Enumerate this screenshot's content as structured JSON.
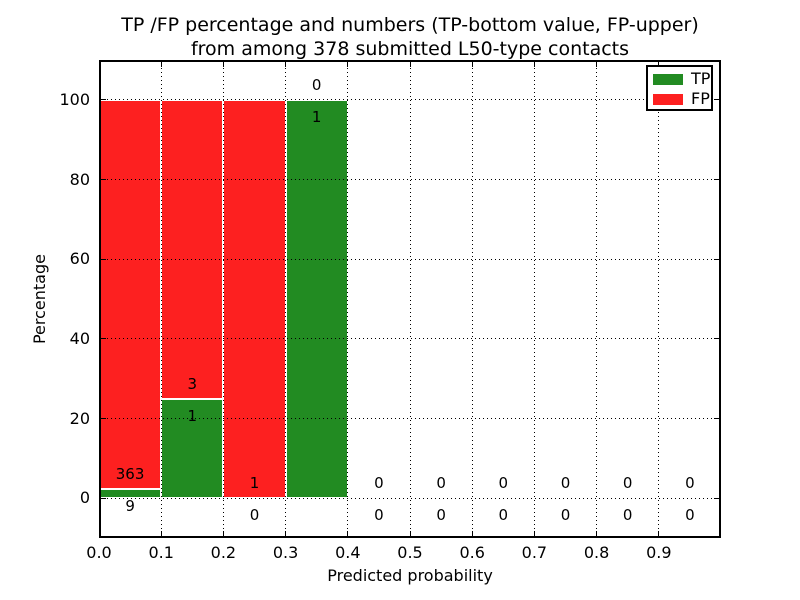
{
  "title": {
    "line1": "TP /FP percentage and numbers (TP-bottom value, FP-upper)",
    "line2": "from among 378 submitted L50-type contacts"
  },
  "x_axis": {
    "label": "Predicted probability",
    "tick_labels": [
      "0.0",
      "0.1",
      "0.2",
      "0.3",
      "0.4",
      "0.5",
      "0.6",
      "0.7",
      "0.8",
      "0.9"
    ],
    "tick_values": [
      0.0,
      0.1,
      0.2,
      0.3,
      0.4,
      0.5,
      0.6,
      0.7,
      0.8,
      0.9
    ]
  },
  "y_axis": {
    "label": "Percentage",
    "tick_labels": [
      "0",
      "20",
      "40",
      "60",
      "80",
      "100"
    ],
    "tick_values": [
      0,
      20,
      40,
      60,
      80,
      100
    ]
  },
  "legend": {
    "entries": [
      {
        "label": "TP",
        "color": "#228b22"
      },
      {
        "label": "FP",
        "color": "#fd2020"
      }
    ]
  },
  "colors": {
    "tp": "#228b22",
    "fp": "#fd2020",
    "bar_edge": "#ffffff",
    "grid": "#000000",
    "text": "#000000",
    "background": "#ffffff"
  },
  "chart_data": {
    "type": "bar",
    "stacked": true,
    "title": "TP /FP percentage and numbers (TP-bottom value, FP-upper) from among 378 submitted L50-type contacts",
    "xlabel": "Predicted probability",
    "ylabel": "Percentage",
    "xlim": [
      0.0,
      1.0
    ],
    "ylim": [
      -10,
      110
    ],
    "grid": true,
    "legend_position": "upper right",
    "bin_width": 0.1,
    "total_contacts": 378,
    "series": [
      {
        "name": "TP",
        "color": "#228b22",
        "position": "bottom"
      },
      {
        "name": "FP",
        "color": "#fd2020",
        "position": "upper"
      }
    ],
    "bins": [
      {
        "x_range": [
          0.0,
          0.1
        ],
        "center": 0.05,
        "tp_count": 9,
        "fp_count": 363,
        "tp_pct": 2.42,
        "fp_pct": 97.58
      },
      {
        "x_range": [
          0.1,
          0.2
        ],
        "center": 0.15,
        "tp_count": 1,
        "fp_count": 3,
        "tp_pct": 25.0,
        "fp_pct": 75.0
      },
      {
        "x_range": [
          0.2,
          0.3
        ],
        "center": 0.25,
        "tp_count": 0,
        "fp_count": 1,
        "tp_pct": 0.0,
        "fp_pct": 100.0
      },
      {
        "x_range": [
          0.3,
          0.4
        ],
        "center": 0.35,
        "tp_count": 1,
        "fp_count": 0,
        "tp_pct": 100.0,
        "fp_pct": 0.0
      },
      {
        "x_range": [
          0.4,
          0.5
        ],
        "center": 0.45,
        "tp_count": 0,
        "fp_count": 0,
        "tp_pct": 0.0,
        "fp_pct": 0.0
      },
      {
        "x_range": [
          0.5,
          0.6
        ],
        "center": 0.55,
        "tp_count": 0,
        "fp_count": 0,
        "tp_pct": 0.0,
        "fp_pct": 0.0
      },
      {
        "x_range": [
          0.6,
          0.7
        ],
        "center": 0.65,
        "tp_count": 0,
        "fp_count": 0,
        "tp_pct": 0.0,
        "fp_pct": 0.0
      },
      {
        "x_range": [
          0.7,
          0.8
        ],
        "center": 0.75,
        "tp_count": 0,
        "fp_count": 0,
        "tp_pct": 0.0,
        "fp_pct": 0.0
      },
      {
        "x_range": [
          0.8,
          0.9
        ],
        "center": 0.85,
        "tp_count": 0,
        "fp_count": 0,
        "tp_pct": 0.0,
        "fp_pct": 0.0
      },
      {
        "x_range": [
          0.9,
          1.0
        ],
        "center": 0.95,
        "tp_count": 0,
        "fp_count": 0,
        "tp_pct": 0.0,
        "fp_pct": 0.0
      }
    ]
  }
}
